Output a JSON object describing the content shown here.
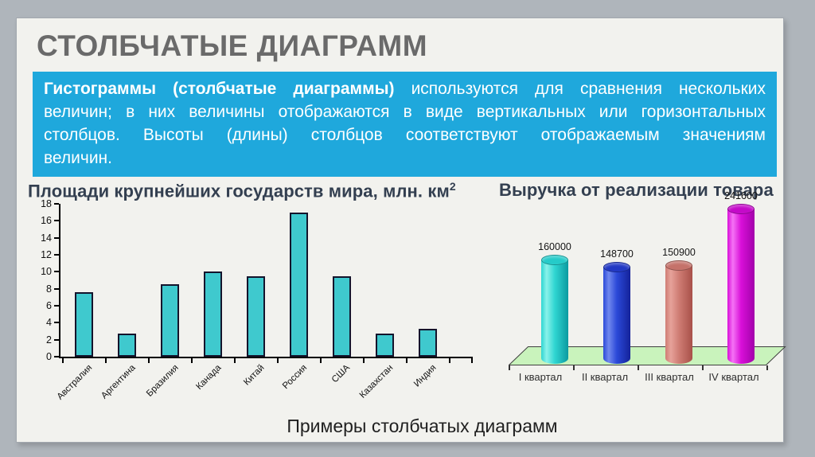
{
  "window": {
    "frame_color": "#afb5bb",
    "slide_bg": "#f2f2ee"
  },
  "slide": {
    "title": "СТОЛБЧАТЫЕ ДИАГРАММ",
    "info_box": {
      "bg_color": "#1fa8dc",
      "text_color": "#ffffff",
      "bold_text": "Гистограммы (столбчатые диаграммы)",
      "line1_rest": " используются для сравнения нескольких",
      "line2": "величин; в них величины отображаются в виде вертикальных или горизонтальных",
      "line3": "столбцов. Высоты (длины) столбцов соответствуют отображаемым значениям",
      "line4": "величин."
    },
    "caption": "Примеры столбчатых диаграмм"
  },
  "chart_data": [
    {
      "type": "bar",
      "title": "Площади крупнейших государств мира, млн. км",
      "title_sup": "2",
      "categories": [
        "Австралия",
        "Аргентина",
        "Бразилия",
        "Канада",
        "Китай",
        "Россия",
        "США",
        "Казахстан",
        "Индия"
      ],
      "values": [
        7.6,
        2.7,
        8.5,
        10,
        9.5,
        17,
        9.5,
        2.7,
        3.3
      ],
      "ylabel": "",
      "xlabel": "",
      "ylim": [
        0,
        18
      ],
      "y_ticks": [
        0,
        2,
        4,
        6,
        8,
        10,
        12,
        14,
        16,
        18
      ],
      "grid": false,
      "legend": false,
      "bar_fill": "#3fc9ce",
      "bar_stroke": "#14142c",
      "axis_color": "#000000"
    },
    {
      "type": "bar",
      "subtype": "3d-cylinder",
      "title": "Выручка от реализации товара",
      "categories": [
        "I квартал",
        "II квартал",
        "III квартал",
        "IV квартал"
      ],
      "values": [
        160000,
        148700,
        150900,
        241600
      ],
      "data_labels": [
        "160000",
        "148700",
        "150900",
        "241600"
      ],
      "grid": false,
      "legend": false,
      "floor_color": "#c9f3bc",
      "floor_stroke": "#3f3f3f",
      "cylinder_colors": [
        {
          "light": "#8af2ea",
          "mid": "#2fd6d2",
          "dark": "#0c9aa0",
          "cap": "#25cbc9"
        },
        {
          "light": "#7188ee",
          "mid": "#2b49d8",
          "dark": "#14229a",
          "cap": "#2138c4"
        },
        {
          "light": "#e6a29a",
          "mid": "#cf7d74",
          "dark": "#a85049",
          "cap": "#c5726a"
        },
        {
          "light": "#f573f5",
          "mid": "#d90fd9",
          "dark": "#a202aa",
          "cap": "#c40ac9"
        }
      ]
    }
  ]
}
